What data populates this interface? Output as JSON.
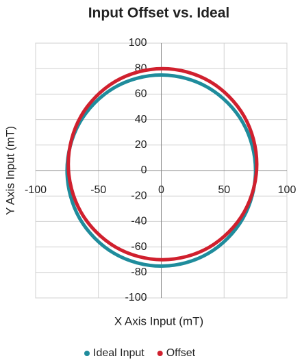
{
  "chart_data": {
    "type": "scatter",
    "title": "Input Offset vs. Ideal",
    "x_label": "X Axis Input (mT)",
    "y_label": "Y Axis Input (mT)",
    "xlim": [
      -100,
      100
    ],
    "ylim": [
      -100,
      100
    ],
    "xticks": [
      -100,
      -50,
      0,
      50,
      100
    ],
    "yticks": [
      -100,
      -80,
      -60,
      -40,
      -20,
      0,
      20,
      40,
      60,
      80,
      100
    ],
    "grid": true,
    "legend": "bottom",
    "series": [
      {
        "name": "Ideal Input",
        "color": "#1f8c9c",
        "x": [
          75,
          72.4,
          65,
          53,
          37.5,
          19.4,
          0,
          -19.4,
          -37.5,
          -53,
          -65,
          -72.4,
          -75,
          -72.4,
          -65,
          -53,
          -37.5,
          -19.4,
          0,
          19.4,
          37.5,
          53,
          65,
          72.4
        ],
        "values": [
          0,
          19.4,
          37.5,
          53,
          65,
          72.4,
          75,
          72.4,
          65,
          53,
          37.5,
          19.4,
          0,
          -19.4,
          -37.5,
          -53,
          -65,
          -72.4,
          -75,
          -72.4,
          -65,
          -53,
          -37.5,
          -19.4
        ]
      },
      {
        "name": "Offset",
        "color": "#d0202e",
        "x": [
          76,
          73.4,
          66,
          54,
          38.5,
          20.4,
          1,
          -18.4,
          -36.5,
          -52,
          -64,
          -71.4,
          -74,
          -71.4,
          -64,
          -52,
          -36.5,
          -18.4,
          1,
          20.4,
          38.5,
          54,
          66,
          73.4
        ],
        "values": [
          5,
          24.4,
          42.5,
          58,
          70,
          77.4,
          80,
          77.4,
          70,
          58,
          42.5,
          24.4,
          5,
          -14.4,
          -32.5,
          -48,
          -60,
          -67.4,
          -70,
          -67.4,
          -60,
          -48,
          -32.5,
          -14.4
        ]
      }
    ]
  }
}
